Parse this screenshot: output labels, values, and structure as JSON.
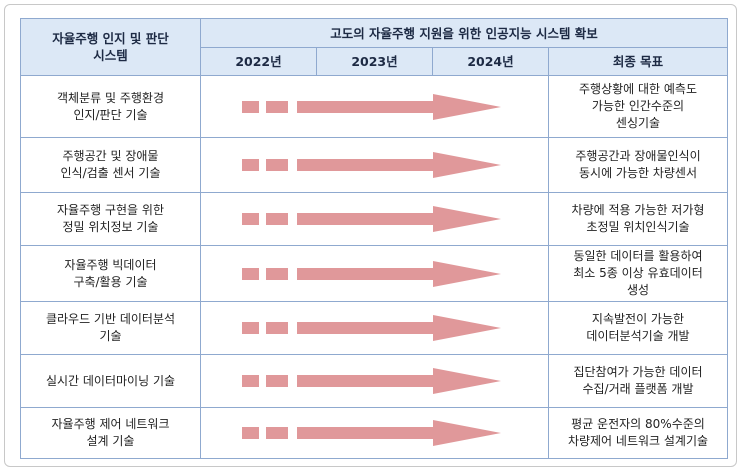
{
  "header": {
    "left_title": [
      "자율주행 인지 및 판단",
      "시스템"
    ],
    "main_title": "고도의 자율주행 지원을 위한 인공지능 시스템 확보",
    "years": [
      "2022년",
      "2023년",
      "2024년"
    ],
    "goal_title": "최종 목표"
  },
  "rows": [
    {
      "tech": [
        "객체분류 및 주행환경",
        "인지/판단 기술"
      ],
      "goal": [
        "주행상황에 대한 예측도",
        "가능한 인간수준의",
        "센싱기술"
      ]
    },
    {
      "tech": [
        "주행공간 및 장애물",
        "인식/검출 센서 기술"
      ],
      "goal": [
        "주행공간과 장애물인식이",
        "동시에 가능한 차량센서"
      ]
    },
    {
      "tech": [
        "자율주행 구현을 위한",
        "정밀 위치정보 기술"
      ],
      "goal": [
        "차량에 적용 가능한 저가형",
        "초정밀 위치인식기술"
      ]
    },
    {
      "tech": [
        "자율주행 빅데이터",
        "구축/활용 기술"
      ],
      "goal": [
        "동일한 데이터를 활용하여",
        "최소 5종 이상 유효데이터",
        "생성"
      ]
    },
    {
      "tech": [
        "클라우드 기반 데이터분석",
        "기술"
      ],
      "goal": [
        "지속발전이 가능한",
        "데이터분석기술 개발"
      ]
    },
    {
      "tech": [
        "실시간 데이터마이닝 기술"
      ],
      "goal": [
        "집단참여가 가능한 데이터",
        "수집/거래 플랫폼 개발"
      ]
    },
    {
      "tech": [
        "자율주행 제어 네트워크",
        "설계 기술"
      ],
      "goal": [
        "평균 운전자의 80%수준의",
        "차량제어 네트워크 설계기술"
      ]
    }
  ]
}
